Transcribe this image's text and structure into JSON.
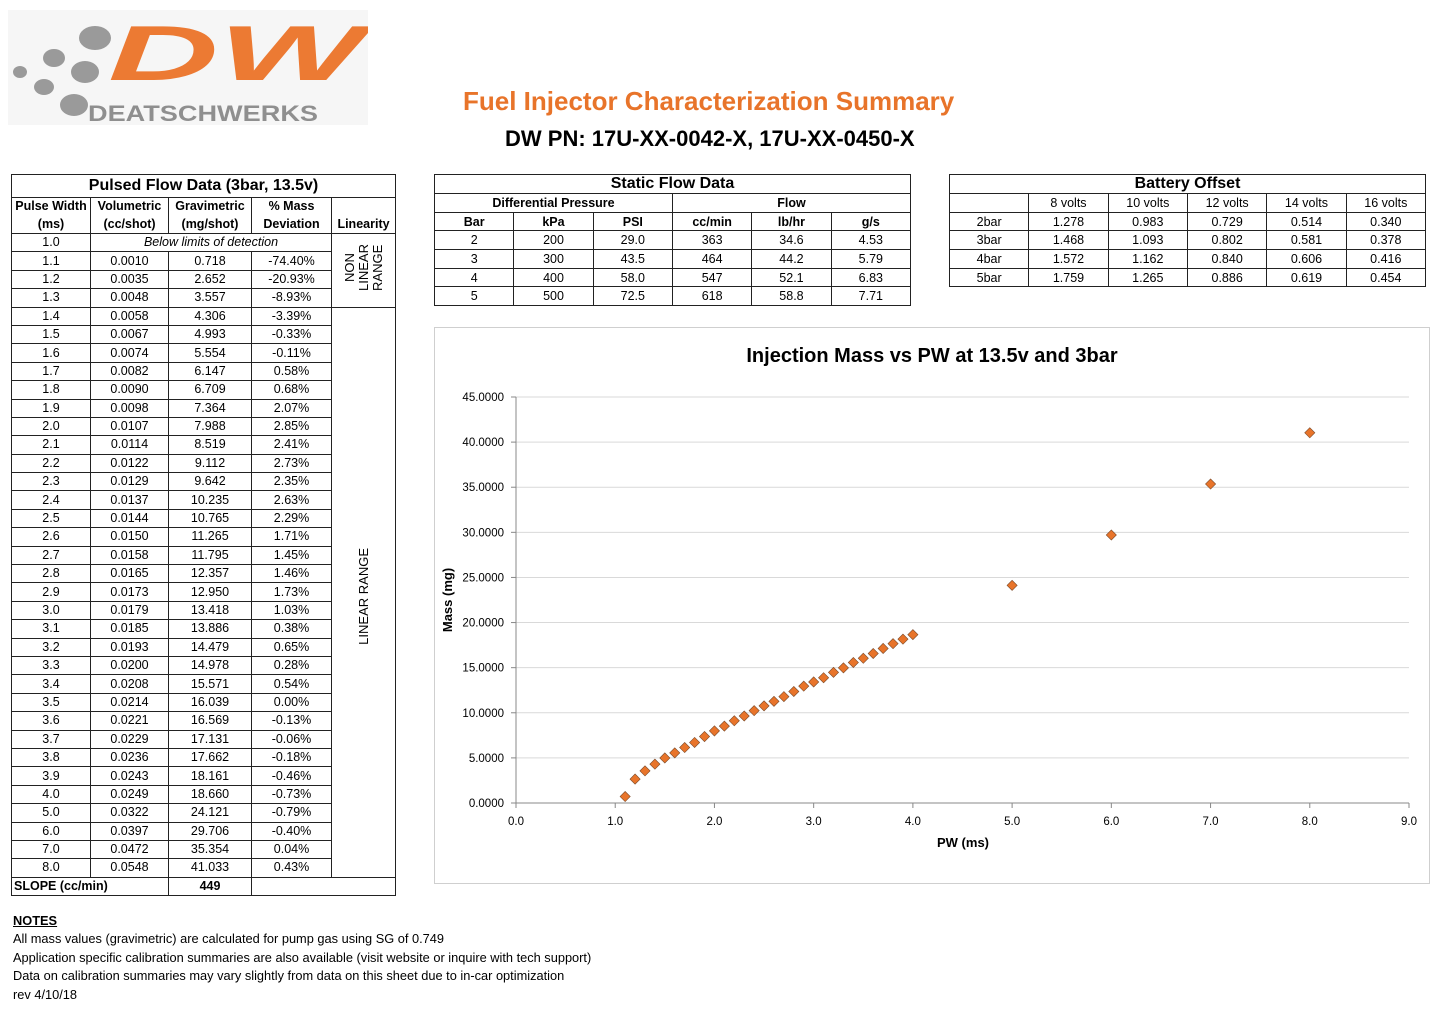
{
  "logo": {
    "mark": "DW",
    "wordmark": "DEATSCHWERKS",
    "orange": "#EC7A33",
    "gray": "#9a9a9a"
  },
  "header": {
    "title": "Fuel Injector Characterization Summary",
    "subtitle": "DW PN: 17U-XX-0042-X, 17U-XX-0450-X",
    "title_color": "#E8742A"
  },
  "pulsed": {
    "title": "Pulsed Flow Data (3bar, 13.5v)",
    "headers": [
      [
        "Pulse Width",
        "(ms)"
      ],
      [
        "Volumetric",
        "(cc/shot)"
      ],
      [
        "Gravimetric",
        "(mg/shot)"
      ],
      [
        "% Mass",
        "Deviation"
      ],
      [
        "",
        "Linearity"
      ]
    ],
    "below_limit_note": "Below limits of detection",
    "nonlinear_label": [
      "NON",
      "LINEAR",
      "RANGE"
    ],
    "linear_label": "LINEAR RANGE",
    "rows": [
      [
        "1.0",
        "",
        "",
        ""
      ],
      [
        "1.1",
        "0.0010",
        "0.718",
        "-74.40%"
      ],
      [
        "1.2",
        "0.0035",
        "2.652",
        "-20.93%"
      ],
      [
        "1.3",
        "0.0048",
        "3.557",
        "-8.93%"
      ],
      [
        "1.4",
        "0.0058",
        "4.306",
        "-3.39%"
      ],
      [
        "1.5",
        "0.0067",
        "4.993",
        "-0.33%"
      ],
      [
        "1.6",
        "0.0074",
        "5.554",
        "-0.11%"
      ],
      [
        "1.7",
        "0.0082",
        "6.147",
        "0.58%"
      ],
      [
        "1.8",
        "0.0090",
        "6.709",
        "0.68%"
      ],
      [
        "1.9",
        "0.0098",
        "7.364",
        "2.07%"
      ],
      [
        "2.0",
        "0.0107",
        "7.988",
        "2.85%"
      ],
      [
        "2.1",
        "0.0114",
        "8.519",
        "2.41%"
      ],
      [
        "2.2",
        "0.0122",
        "9.112",
        "2.73%"
      ],
      [
        "2.3",
        "0.0129",
        "9.642",
        "2.35%"
      ],
      [
        "2.4",
        "0.0137",
        "10.235",
        "2.63%"
      ],
      [
        "2.5",
        "0.0144",
        "10.765",
        "2.29%"
      ],
      [
        "2.6",
        "0.0150",
        "11.265",
        "1.71%"
      ],
      [
        "2.7",
        "0.0158",
        "11.795",
        "1.45%"
      ],
      [
        "2.8",
        "0.0165",
        "12.357",
        "1.46%"
      ],
      [
        "2.9",
        "0.0173",
        "12.950",
        "1.73%"
      ],
      [
        "3.0",
        "0.0179",
        "13.418",
        "1.03%"
      ],
      [
        "3.1",
        "0.0185",
        "13.886",
        "0.38%"
      ],
      [
        "3.2",
        "0.0193",
        "14.479",
        "0.65%"
      ],
      [
        "3.3",
        "0.0200",
        "14.978",
        "0.28%"
      ],
      [
        "3.4",
        "0.0208",
        "15.571",
        "0.54%"
      ],
      [
        "3.5",
        "0.0214",
        "16.039",
        "0.00%"
      ],
      [
        "3.6",
        "0.0221",
        "16.569",
        "-0.13%"
      ],
      [
        "3.7",
        "0.0229",
        "17.131",
        "-0.06%"
      ],
      [
        "3.8",
        "0.0236",
        "17.662",
        "-0.18%"
      ],
      [
        "3.9",
        "0.0243",
        "18.161",
        "-0.46%"
      ],
      [
        "4.0",
        "0.0249",
        "18.660",
        "-0.73%"
      ],
      [
        "5.0",
        "0.0322",
        "24.121",
        "-0.79%"
      ],
      [
        "6.0",
        "0.0397",
        "29.706",
        "-0.40%"
      ],
      [
        "7.0",
        "0.0472",
        "35.354",
        "0.04%"
      ],
      [
        "8.0",
        "0.0548",
        "41.033",
        "0.43%"
      ]
    ],
    "slope_label": "SLOPE (cc/min)",
    "slope_value": "449"
  },
  "static": {
    "title": "Static Flow Data",
    "group1": "Differential Pressure",
    "group2": "Flow",
    "headers": [
      "Bar",
      "kPa",
      "PSI",
      "cc/min",
      "lb/hr",
      "g/s"
    ],
    "rows": [
      [
        "2",
        "200",
        "29.0",
        "363",
        "34.6",
        "4.53"
      ],
      [
        "3",
        "300",
        "43.5",
        "464",
        "44.2",
        "5.79"
      ],
      [
        "4",
        "400",
        "58.0",
        "547",
        "52.1",
        "6.83"
      ],
      [
        "5",
        "500",
        "72.5",
        "618",
        "58.8",
        "7.71"
      ]
    ]
  },
  "battery": {
    "title": "Battery Offset",
    "headers": [
      "",
      "8 volts",
      "10 volts",
      "12 volts",
      "14 volts",
      "16 volts"
    ],
    "rows": [
      [
        "2bar",
        "1.278",
        "0.983",
        "0.729",
        "0.514",
        "0.340"
      ],
      [
        "3bar",
        "1.468",
        "1.093",
        "0.802",
        "0.581",
        "0.378"
      ],
      [
        "4bar",
        "1.572",
        "1.162",
        "0.840",
        "0.606",
        "0.416"
      ],
      [
        "5bar",
        "1.759",
        "1.265",
        "0.886",
        "0.619",
        "0.454"
      ]
    ]
  },
  "chart_data": {
    "type": "scatter",
    "title": "Injection Mass vs PW at 13.5v and 3bar",
    "xlabel": "PW (ms)",
    "ylabel": "Mass (mg)",
    "xlim": [
      0,
      9
    ],
    "ylim": [
      0,
      45
    ],
    "xticks": [
      "0.0",
      "1.0",
      "2.0",
      "3.0",
      "4.0",
      "5.0",
      "6.0",
      "7.0",
      "8.0",
      "9.0"
    ],
    "yticks": [
      "0.0000",
      "5.0000",
      "10.0000",
      "15.0000",
      "20.0000",
      "25.0000",
      "30.0000",
      "35.0000",
      "40.0000",
      "45.0000"
    ],
    "grid": "horizontal",
    "marker_color": "#E8742A",
    "x": [
      1.1,
      1.2,
      1.3,
      1.4,
      1.5,
      1.6,
      1.7,
      1.8,
      1.9,
      2.0,
      2.1,
      2.2,
      2.3,
      2.4,
      2.5,
      2.6,
      2.7,
      2.8,
      2.9,
      3.0,
      3.1,
      3.2,
      3.3,
      3.4,
      3.5,
      3.6,
      3.7,
      3.8,
      3.9,
      4.0,
      5.0,
      6.0,
      7.0,
      8.0
    ],
    "y": [
      0.718,
      2.652,
      3.557,
      4.306,
      4.993,
      5.554,
      6.147,
      6.709,
      7.364,
      7.988,
      8.519,
      9.112,
      9.642,
      10.235,
      10.765,
      11.265,
      11.795,
      12.357,
      12.95,
      13.418,
      13.886,
      14.479,
      14.978,
      15.571,
      16.039,
      16.569,
      17.131,
      17.662,
      18.161,
      18.66,
      24.121,
      29.706,
      35.354,
      41.033
    ]
  },
  "notes": {
    "heading": "NOTES",
    "lines": [
      "All mass values (gravimetric) are calculated for pump gas using SG of 0.749",
      "Application specific calibration summaries are also available (visit website or inquire with tech support)",
      "Data on calibration summaries may vary slightly from data on this sheet due to in-car optimization",
      "rev 4/10/18"
    ]
  }
}
